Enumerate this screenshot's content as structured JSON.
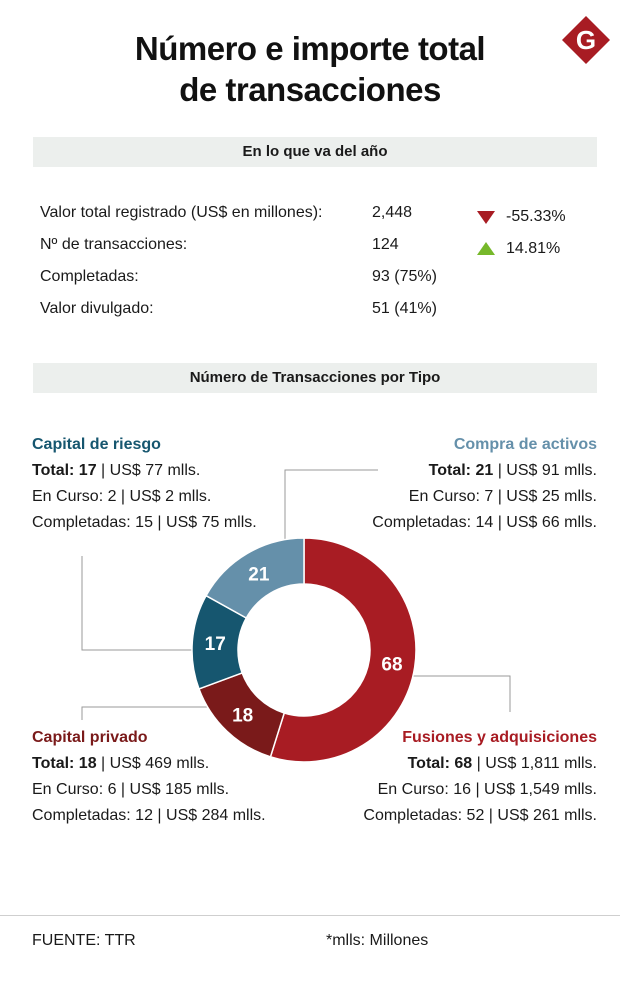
{
  "title_line1": "Número e importe total",
  "title_line2": "de transacciones",
  "logo_letter": "G",
  "colors": {
    "capital_riesgo": "#16566f",
    "compra_activos": "#6590aa",
    "capital_privado": "#7a1a1a",
    "fusiones": "#a81c23",
    "down": "#a81c23",
    "up": "#76b82a"
  },
  "summary": {
    "header": "En lo que va del año",
    "rows": [
      {
        "label": "Valor total registrado (US$ en millones):",
        "value": "2,448"
      },
      {
        "label": "Nº de transacciones:",
        "value": "124"
      },
      {
        "label": "Completadas:",
        "value": "93 (75%)"
      },
      {
        "label": "Valor divulgado:",
        "value": "51 (41%)"
      }
    ],
    "trends": [
      {
        "direction": "down",
        "value": "-55.33%"
      },
      {
        "direction": "up",
        "value": "14.81%"
      }
    ]
  },
  "chart_data": {
    "type": "pie",
    "title": "Número de Transacciones por Tipo",
    "categories": [
      "Fusiones y adquisiciones",
      "Capital privado",
      "Capital de riesgo",
      "Compra de activos"
    ],
    "values": [
      68,
      18,
      17,
      21
    ],
    "labels": [
      "68",
      "18",
      "17",
      "21"
    ],
    "details": {
      "capital_riesgo": {
        "name": "Capital de riesgo",
        "total_label": "Total: 17",
        "total_rest": " | US$ 77 mlls.",
        "en_curso": "En Curso: 2 | US$ 2 mlls.",
        "completadas": "Completadas: 15 | US$ 75 mlls."
      },
      "compra_activos": {
        "name": "Compra de activos",
        "total_label": "Total: 21",
        "total_rest": " | US$ 91 mlls.",
        "en_curso": "En Curso: 7 | US$ 25 mlls.",
        "completadas": "Completadas: 14 | US$ 66 mlls."
      },
      "capital_privado": {
        "name": "Capital privado",
        "total_label": "Total: 18",
        "total_rest": " | US$ 469 mlls.",
        "en_curso": "En Curso: 6 | US$ 185 mlls.",
        "completadas": "Completadas: 12 | US$ 284 mlls."
      },
      "fusiones": {
        "name": "Fusiones y adquisiciones",
        "total_label": "Total: 68",
        "total_rest": " | US$ 1,811 mlls.",
        "en_curso": "En Curso: 16 | US$ 1,549 mlls.",
        "completadas": "Completadas: 52 | US$ 261 mlls."
      }
    }
  },
  "footer": {
    "source": "FUENTE: TTR",
    "note": "*mlls: Millones"
  }
}
